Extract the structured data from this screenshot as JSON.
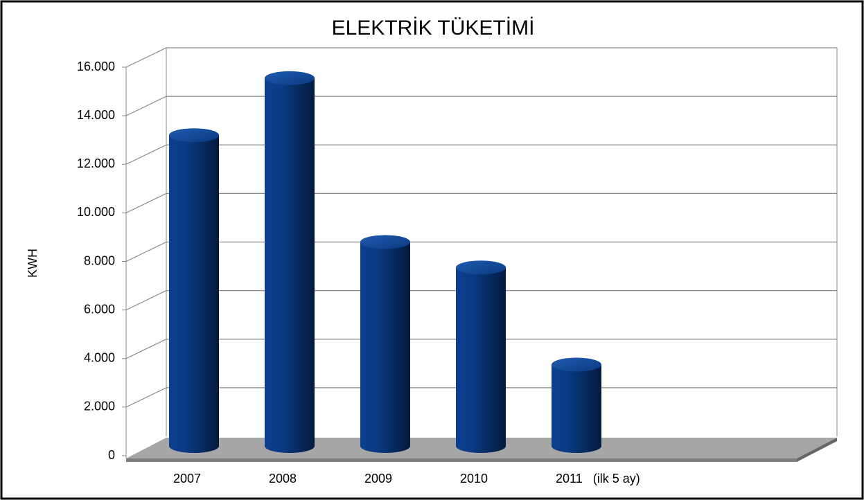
{
  "chart_data": {
    "type": "bar",
    "title": "ELEKTRİK TÜKETİMİ",
    "y_label": "KWH",
    "categories": [
      "2007",
      "2008",
      "2009",
      "2010",
      "2011   (ilk 5 ay)"
    ],
    "values": [
      12800,
      15150,
      8400,
      7350,
      3350
    ],
    "color": "#0a3d8a",
    "ylim": [
      0,
      16000
    ],
    "yticks": [
      0,
      {
        "value": 2000,
        "label": "2.000"
      },
      {
        "value": 4000,
        "label": "4.000"
      },
      {
        "value": 6000,
        "label": "6.000"
      },
      {
        "value": 8000,
        "label": "8.000"
      },
      {
        "value": 10000,
        "label": "10.000"
      },
      {
        "value": 12000,
        "label": "12.000"
      },
      {
        "value": 14000,
        "label": "14.000"
      },
      {
        "value": 16000,
        "label": "16.000"
      }
    ],
    "grid": true
  }
}
